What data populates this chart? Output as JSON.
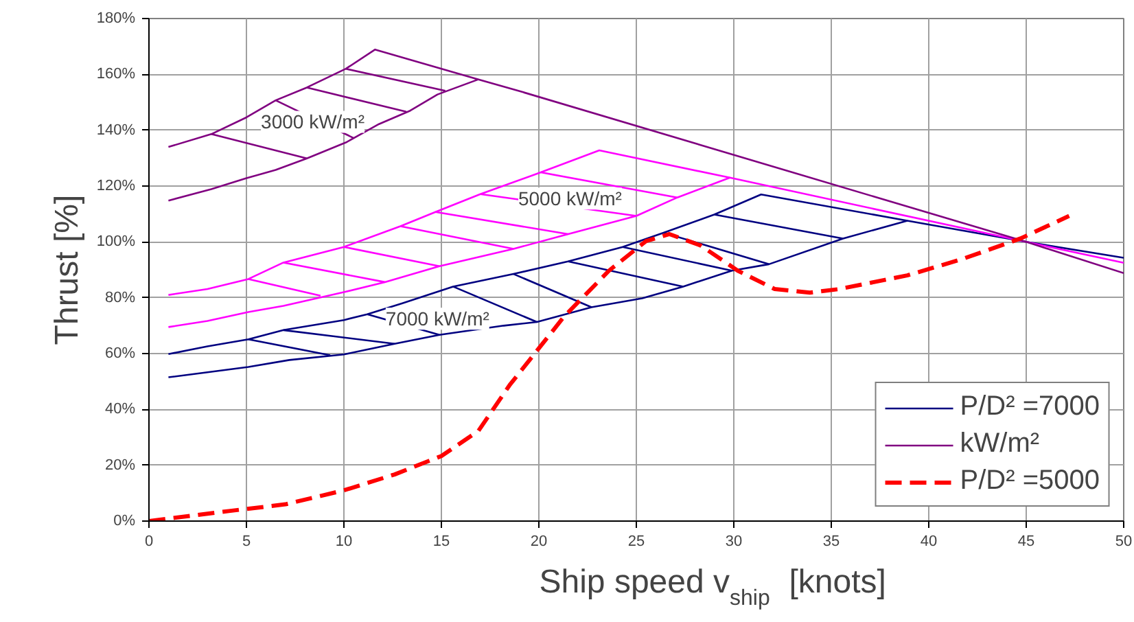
{
  "chart_data": {
    "type": "line",
    "xlabel": "Ship speed v$_{ship}$ [knots]",
    "ylabel": "Thrust [%]",
    "xlim": [
      0,
      50
    ],
    "ylim": [
      0,
      180
    ],
    "xticks": [
      0,
      5,
      10,
      15,
      20,
      25,
      30,
      35,
      40,
      45,
      50
    ],
    "yticks": [
      {
        "value": 0,
        "label": "0%"
      },
      {
        "value": 20,
        "label": "20%"
      },
      {
        "value": 40,
        "label": "40%"
      },
      {
        "value": 60,
        "label": "60%"
      },
      {
        "value": 80,
        "label": "80%"
      },
      {
        "value": 100,
        "label": "100%"
      },
      {
        "value": 120,
        "label": "120%"
      },
      {
        "value": 140,
        "label": "140%"
      },
      {
        "value": 160,
        "label": "160%"
      },
      {
        "value": 180,
        "label": "180%"
      }
    ],
    "grid": true,
    "legend": "bottom right",
    "line_style": "solid",
    "marker": "none",
    "annotations": [
      "3000 kW/m²",
      "5000 kW/m²",
      "7000 kW/m²"
    ],
    "series": [
      {
        "name": "P/D² =7000",
        "color": "#000080",
        "x": [
          1,
          3,
          5.1,
          6.9,
          10,
          11.2,
          13,
          15.6,
          18.7,
          21.5,
          24.3,
          26.4,
          29,
          31.4,
          38.9,
          45,
          50
        ],
        "values": [
          59.8,
          62.6,
          65.1,
          68.4,
          72,
          74.1,
          78,
          84,
          88.5,
          93,
          98.2,
          103.3,
          109.8,
          117,
          107.6,
          100,
          94.3
        ]
      },
      {
        "color": "#000080",
        "x": [
          1,
          3,
          5.1,
          7.2,
          10,
          12.6,
          14.9,
          18.2,
          19.9,
          22.7,
          25.3,
          27.4,
          29.9,
          31.8,
          35.6,
          38.9
        ],
        "values": [
          51.5,
          53.3,
          55.2,
          57.7,
          59.7,
          63.5,
          66.7,
          70,
          71.3,
          76.6,
          79.8,
          84,
          89.7,
          92,
          101.2,
          107.6
        ]
      },
      {
        "color": "#000080",
        "x": [
          5.1,
          9.3,
          null,
          6.9,
          12.6,
          null,
          11.2,
          14.9,
          null,
          15.6,
          19.9,
          null,
          18.7,
          22.7,
          null,
          21.5,
          27.4,
          null,
          24.3,
          29.9,
          null,
          26.4,
          31.8,
          null,
          29,
          35.6
        ],
        "values": [
          65.1,
          59.4,
          null,
          68.4,
          63.5,
          null,
          74.1,
          66.7,
          null,
          84,
          71.3,
          null,
          88.5,
          76.6,
          null,
          93,
          84,
          null,
          98.2,
          89.7,
          null,
          103.3,
          92,
          null,
          109.8,
          101.2
        ]
      },
      {
        "color": "#ff00ff",
        "x": [
          1,
          3,
          5.1,
          6.9,
          10,
          12.9,
          14.7,
          17,
          20.1,
          23.1,
          29.8,
          45,
          50
        ],
        "values": [
          81,
          83.1,
          86.7,
          92.6,
          98.2,
          105.6,
          110.7,
          117.1,
          124.9,
          132.8,
          123,
          100,
          92.5
        ]
      },
      {
        "color": "#ff00ff",
        "x": [
          1,
          3,
          5.1,
          6.9,
          10,
          12.1,
          14.9,
          18.7,
          21.5,
          25,
          27.1,
          29.8
        ],
        "values": [
          69.5,
          71.7,
          74.9,
          77.1,
          82,
          85.6,
          91.3,
          97.5,
          102.8,
          109.3,
          115.9,
          123
        ]
      },
      {
        "color": "#ff00ff",
        "x": [
          5.1,
          8.8,
          null,
          6.9,
          12.1,
          null,
          10,
          14.9,
          null,
          12.9,
          18.7,
          null,
          14.7,
          21.5,
          null,
          17,
          25,
          null,
          20.1,
          27.1
        ],
        "values": [
          86.7,
          80.7,
          null,
          92.6,
          85.6,
          null,
          98.2,
          91.3,
          null,
          105.6,
          97.5,
          null,
          110.7,
          102.8,
          null,
          117.1,
          109.3,
          null,
          124.9,
          115.9
        ]
      },
      {
        "name": "kW/m²",
        "color": "#800080",
        "x": [
          1,
          3.2,
          5,
          6.5,
          8.1,
          10.1,
          11.6,
          16.9,
          19.2,
          45,
          50
        ],
        "values": [
          134,
          138.6,
          144.6,
          150.7,
          155.3,
          162,
          168.9,
          158.2,
          153.6,
          100,
          88.8
        ]
      },
      {
        "color": "#800080",
        "x": [
          1,
          3.2,
          5,
          6.5,
          8.1,
          10.1,
          11.8,
          13.4,
          14.8,
          16.9
        ],
        "values": [
          114.8,
          118.9,
          122.8,
          125.8,
          129.9,
          135.6,
          142.2,
          147,
          152.8,
          158.2
        ]
      },
      {
        "color": "#800080",
        "x": [
          3.2,
          8.1,
          null,
          6.5,
          10.5,
          null,
          8.1,
          13.2,
          null,
          10.1,
          15.2
        ],
        "values": [
          138.6,
          129.9,
          null,
          150.7,
          137.2,
          null,
          155.3,
          146.6,
          null,
          162,
          154.1
        ]
      },
      {
        "name": "P/D² =5000",
        "color": "#ff0000",
        "line_style": "dashed",
        "x": [
          0,
          4.1,
          7,
          10,
          12.6,
          15,
          16.9,
          18.5,
          21.3,
          23.6,
          25.5,
          26.7,
          28.3,
          30.2,
          32.1,
          33.9,
          35.4,
          38.9,
          41.7,
          44.7,
          47.2
        ],
        "values": [
          0,
          3.6,
          6,
          11,
          16.7,
          23.3,
          32.3,
          48.7,
          73.3,
          89.7,
          100.3,
          102.8,
          98.7,
          89.7,
          83.1,
          81.8,
          83.1,
          88,
          93.8,
          101.2,
          109.3
        ]
      }
    ]
  }
}
